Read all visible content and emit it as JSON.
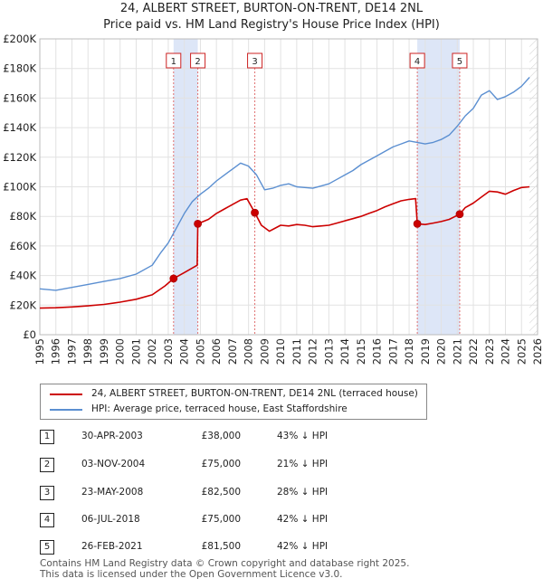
{
  "title_line1": "24, ALBERT STREET, BURTON-ON-TRENT, DE14 2NL",
  "title_line2": "Price paid vs. HM Land Registry's House Price Index (HPI)",
  "colors": {
    "property": "#cc0000",
    "hpi": "#5b8fd1",
    "shade": "#dde6f7",
    "vline": "#e07070"
  },
  "chart_data": {
    "type": "line",
    "title": "24, ALBERT STREET, BURTON-ON-TRENT, DE14 2NL Price paid vs. HM Land Registry's House Price Index (HPI)",
    "xlabel": "",
    "ylabel": "",
    "xlim": [
      1995,
      2026
    ],
    "ylim": [
      0,
      200000
    ],
    "x_ticks": [
      "1995",
      "1996",
      "1997",
      "1998",
      "1999",
      "2000",
      "2001",
      "2002",
      "2003",
      "2004",
      "2005",
      "2006",
      "2007",
      "2008",
      "2009",
      "2010",
      "2011",
      "2012",
      "2013",
      "2014",
      "2015",
      "2016",
      "2017",
      "2018",
      "2019",
      "2020",
      "2021",
      "2022",
      "2023",
      "2024",
      "2025",
      "2026"
    ],
    "y_ticks": [
      {
        "value": 0,
        "label": "£0"
      },
      {
        "value": 20000,
        "label": "£20K"
      },
      {
        "value": 40000,
        "label": "£40K"
      },
      {
        "value": 60000,
        "label": "£60K"
      },
      {
        "value": 80000,
        "label": "£80K"
      },
      {
        "value": 100000,
        "label": "£100K"
      },
      {
        "value": 120000,
        "label": "£120K"
      },
      {
        "value": 140000,
        "label": "£140K"
      },
      {
        "value": 160000,
        "label": "£160K"
      },
      {
        "value": 180000,
        "label": "£180K"
      },
      {
        "value": 200000,
        "label": "£200K"
      }
    ],
    "grid": true,
    "series": [
      {
        "name": "24, ALBERT STREET, BURTON-ON-TRENT, DE14 2NL (terraced house)",
        "x": [
          1995.0,
          1996.0,
          1997.0,
          1998.0,
          1999.0,
          2000.0,
          2001.0,
          2002.0,
          2002.8,
          2003.33,
          2004.0,
          2004.8,
          2004.84,
          2005.5,
          2006.0,
          2006.5,
          2007.0,
          2007.5,
          2007.9,
          2008.39,
          2008.8,
          2009.3,
          2010.0,
          2010.5,
          2011.0,
          2011.5,
          2012.0,
          2012.5,
          2013.0,
          2013.5,
          2014.0,
          2014.5,
          2015.0,
          2015.5,
          2016.0,
          2016.5,
          2017.0,
          2017.5,
          2018.0,
          2018.4,
          2018.51,
          2019.0,
          2019.5,
          2020.0,
          2020.5,
          2021.15,
          2021.5,
          2022.0,
          2022.5,
          2023.0,
          2023.5,
          2024.0,
          2024.5,
          2025.0,
          2025.5
        ],
        "values": [
          18000,
          18200,
          18800,
          19500,
          20500,
          22000,
          24000,
          27000,
          33000,
          38000,
          42000,
          47000,
          75000,
          78000,
          82000,
          85000,
          88000,
          91000,
          92000,
          82500,
          74000,
          70000,
          74000,
          73500,
          74500,
          74000,
          73000,
          73500,
          74000,
          75500,
          77000,
          78500,
          80000,
          82000,
          84000,
          86500,
          88500,
          90500,
          91500,
          92000,
          75000,
          74500,
          75500,
          76500,
          78000,
          81500,
          86000,
          89000,
          93000,
          97000,
          96500,
          95000,
          97500,
          99500,
          100000
        ]
      },
      {
        "name": "HPI: Average price, terraced house, East Staffordshire",
        "x": [
          1995.0,
          1996.0,
          1997.0,
          1998.0,
          1999.0,
          2000.0,
          2001.0,
          2002.0,
          2002.5,
          2003.0,
          2003.5,
          2004.0,
          2004.5,
          2005.0,
          2005.5,
          2006.0,
          2006.5,
          2007.0,
          2007.5,
          2008.0,
          2008.5,
          2009.0,
          2009.5,
          2010.0,
          2010.5,
          2011.0,
          2011.5,
          2012.0,
          2012.5,
          2013.0,
          2013.5,
          2014.0,
          2014.5,
          2015.0,
          2015.5,
          2016.0,
          2016.5,
          2017.0,
          2017.5,
          2018.0,
          2018.5,
          2019.0,
          2019.5,
          2020.0,
          2020.5,
          2021.0,
          2021.5,
          2022.0,
          2022.5,
          2023.0,
          2023.5,
          2024.0,
          2024.5,
          2025.0,
          2025.5
        ],
        "values": [
          31000,
          30000,
          32000,
          34000,
          36000,
          38000,
          41000,
          47000,
          55000,
          62000,
          72000,
          82000,
          90000,
          95000,
          99000,
          104000,
          108000,
          112000,
          116000,
          114000,
          108000,
          98000,
          99000,
          101000,
          102000,
          100000,
          99500,
          99000,
          100500,
          102000,
          105000,
          108000,
          111000,
          115000,
          118000,
          121000,
          124000,
          127000,
          129000,
          131000,
          130000,
          129000,
          130000,
          132000,
          135000,
          141000,
          148000,
          153000,
          162000,
          165000,
          159000,
          161000,
          164000,
          168000,
          174000
        ]
      }
    ],
    "transactions": [
      {
        "id": "1",
        "x": 2003.33,
        "value": 38000
      },
      {
        "id": "2",
        "x": 2004.84,
        "value": 75000
      },
      {
        "id": "3",
        "x": 2008.39,
        "value": 82500
      },
      {
        "id": "4",
        "x": 2018.51,
        "value": 75000
      },
      {
        "id": "5",
        "x": 2021.15,
        "value": 81500
      }
    ],
    "shaded_spans": [
      [
        2003.33,
        2004.84
      ],
      [
        2018.51,
        2021.15
      ]
    ]
  },
  "legend": {
    "property_label": "24, ALBERT STREET, BURTON-ON-TRENT, DE14 2NL (terraced house)",
    "hpi_label": "HPI: Average price, terraced house, East Staffordshire"
  },
  "table": [
    {
      "num": "1",
      "date": "30-APR-2003",
      "price": "£38,000",
      "hpi": "43% ↓ HPI"
    },
    {
      "num": "2",
      "date": "03-NOV-2004",
      "price": "£75,000",
      "hpi": "21% ↓ HPI"
    },
    {
      "num": "3",
      "date": "23-MAY-2008",
      "price": "£82,500",
      "hpi": "28% ↓ HPI"
    },
    {
      "num": "4",
      "date": "06-JUL-2018",
      "price": "£75,000",
      "hpi": "42% ↓ HPI"
    },
    {
      "num": "5",
      "date": "26-FEB-2021",
      "price": "£81,500",
      "hpi": "42% ↓ HPI"
    }
  ],
  "footer_line1": "Contains HM Land Registry data © Crown copyright and database right 2025.",
  "footer_line2": "This data is licensed under the Open Government Licence v3.0."
}
